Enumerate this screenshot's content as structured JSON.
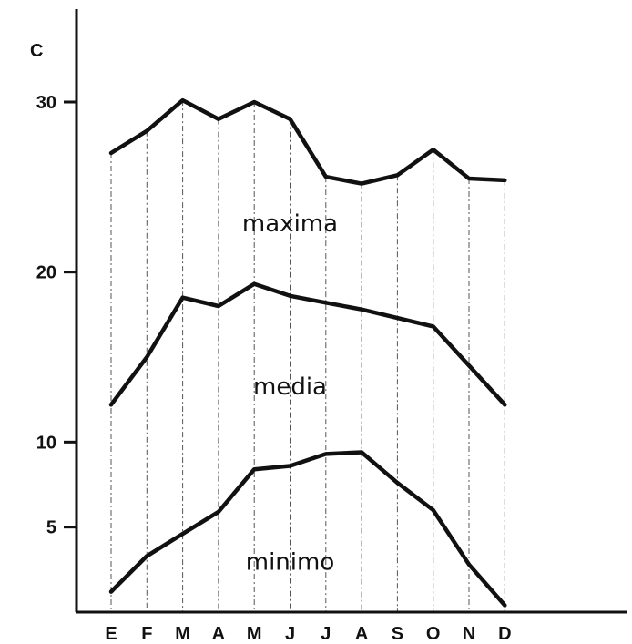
{
  "chart_data": {
    "type": "line",
    "unit": "C",
    "categories": [
      "E",
      "F",
      "M",
      "A",
      "M",
      "J",
      "J",
      "A",
      "S",
      "O",
      "N",
      "D"
    ],
    "y_ticks": [
      {
        "value": 30,
        "label": "30"
      },
      {
        "value": 20,
        "label": "20"
      },
      {
        "value": 10,
        "label": "10"
      },
      {
        "value": 5,
        "label": "5"
      }
    ],
    "ylim": [
      0,
      35.5
    ],
    "grid": "vertical-dashed",
    "series": [
      {
        "name": "maxima",
        "values": [
          27,
          28.3,
          30.1,
          29,
          30,
          29,
          25.6,
          25.2,
          25.7,
          27.2,
          25.5,
          25.4
        ]
      },
      {
        "name": "media",
        "values": [
          12.2,
          15,
          18.5,
          18,
          19.3,
          18.6,
          18.2,
          17.8,
          17.3,
          16.8,
          14.5,
          12.2
        ]
      },
      {
        "name": "minimo",
        "values": [
          1.2,
          3.3,
          4.6,
          5.9,
          8.4,
          8.6,
          9.3,
          9.4,
          7.6,
          6,
          2.8,
          0.4
        ]
      }
    ],
    "series_label_positions": [
      {
        "series": "maxima",
        "value": 22.4,
        "category_index": 5
      },
      {
        "series": "media",
        "value": 12.8,
        "category_index": 5
      },
      {
        "series": "minimo",
        "value": 2.5,
        "category_index": 5
      }
    ]
  }
}
